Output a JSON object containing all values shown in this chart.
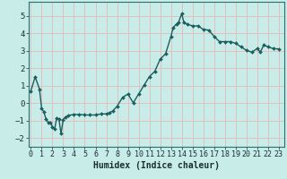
{
  "xlabel": "Humidex (Indice chaleur)",
  "bg_color": "#c8ece8",
  "grid_color": "#e8b8b8",
  "line_color": "#1a5f5f",
  "marker_color": "#1a5f5f",
  "x": [
    0,
    0.4,
    0.8,
    1.0,
    1.2,
    1.4,
    1.6,
    1.8,
    2.0,
    2.2,
    2.4,
    2.6,
    2.8,
    3.0,
    3.2,
    3.5,
    4.0,
    4.5,
    5.0,
    5.5,
    6.0,
    6.5,
    7.0,
    7.3,
    7.6,
    8.0,
    8.5,
    9.0,
    9.5,
    10.0,
    10.5,
    11.0,
    11.5,
    12.0,
    12.5,
    13.0,
    13.2,
    13.5,
    13.7,
    14.0,
    14.2,
    14.5,
    15.0,
    15.5,
    16.0,
    16.5,
    17.0,
    17.5,
    18.0,
    18.5,
    19.0,
    19.5,
    20.0,
    20.5,
    21.0,
    21.3,
    21.6,
    22.0,
    22.5,
    23.0
  ],
  "y": [
    0.7,
    1.5,
    0.8,
    -0.3,
    -0.5,
    -0.9,
    -1.1,
    -1.1,
    -1.35,
    -1.5,
    -0.85,
    -0.9,
    -1.75,
    -0.95,
    -0.8,
    -0.7,
    -0.65,
    -0.65,
    -0.68,
    -0.68,
    -0.68,
    -0.62,
    -0.62,
    -0.55,
    -0.45,
    -0.18,
    0.32,
    0.52,
    0.02,
    0.52,
    1.02,
    1.52,
    1.82,
    2.52,
    2.82,
    3.82,
    4.32,
    4.52,
    4.62,
    5.12,
    4.62,
    4.52,
    4.42,
    4.42,
    4.22,
    4.18,
    3.82,
    3.52,
    3.52,
    3.52,
    3.42,
    3.22,
    3.02,
    2.92,
    3.12,
    2.92,
    3.32,
    3.22,
    3.12,
    3.1
  ],
  "xlim": [
    -0.2,
    23.5
  ],
  "ylim": [
    -2.5,
    5.8
  ],
  "xticks": [
    0,
    1,
    2,
    3,
    4,
    5,
    6,
    7,
    8,
    9,
    10,
    11,
    12,
    13,
    14,
    15,
    16,
    17,
    18,
    19,
    20,
    21,
    22,
    23
  ],
  "yticks": [
    -2,
    -1,
    0,
    1,
    2,
    3,
    4,
    5
  ],
  "linewidth": 1.0,
  "markersize": 2.0
}
